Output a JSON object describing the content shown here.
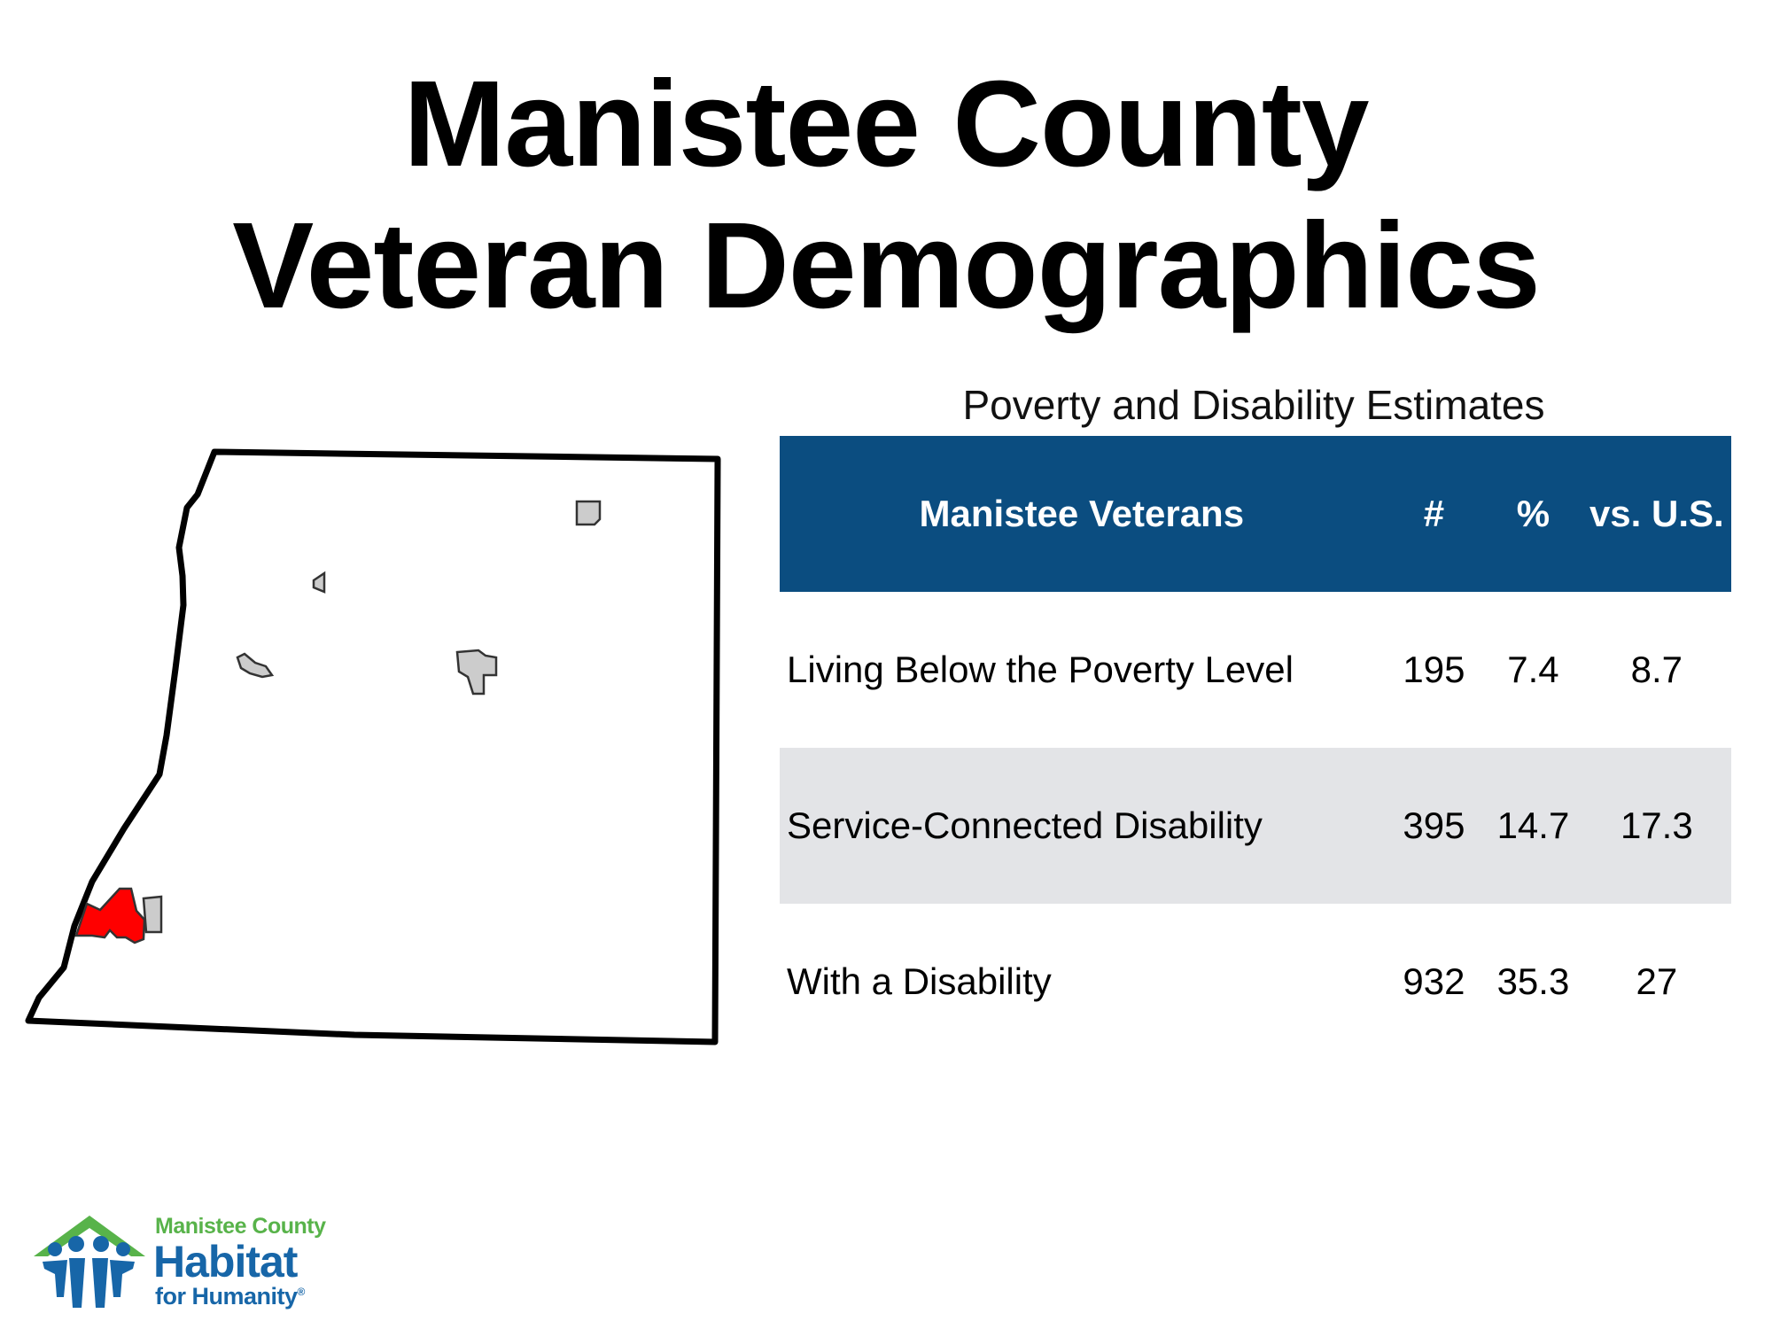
{
  "title": {
    "line1": "Manistee County",
    "line2": "Veteran Demographics"
  },
  "table": {
    "caption": "Poverty and Disability Estimates",
    "headers": [
      "Manistee Veterans",
      "#",
      "%",
      "vs. U.S."
    ],
    "rows": [
      {
        "label": "Living Below the Poverty Level",
        "count": "195",
        "percent": "7.4",
        "us": "8.7"
      },
      {
        "label": "Service-Connected Disability",
        "count": "395",
        "percent": "14.7",
        "us": "17.3"
      },
      {
        "label": "With a Disability",
        "count": "932",
        "percent": "35.3",
        "us": "27"
      }
    ],
    "header_color": "#0b4d80",
    "shade_color": "#e3e4e7"
  },
  "map": {
    "highlight_color": "#ff0000",
    "place_color": "#cccccc"
  },
  "logo": {
    "line1": "Manistee County",
    "line2": "Habitat",
    "line3": "for Humanity",
    "mark": "®",
    "icon": "habitat-house-people-icon"
  }
}
